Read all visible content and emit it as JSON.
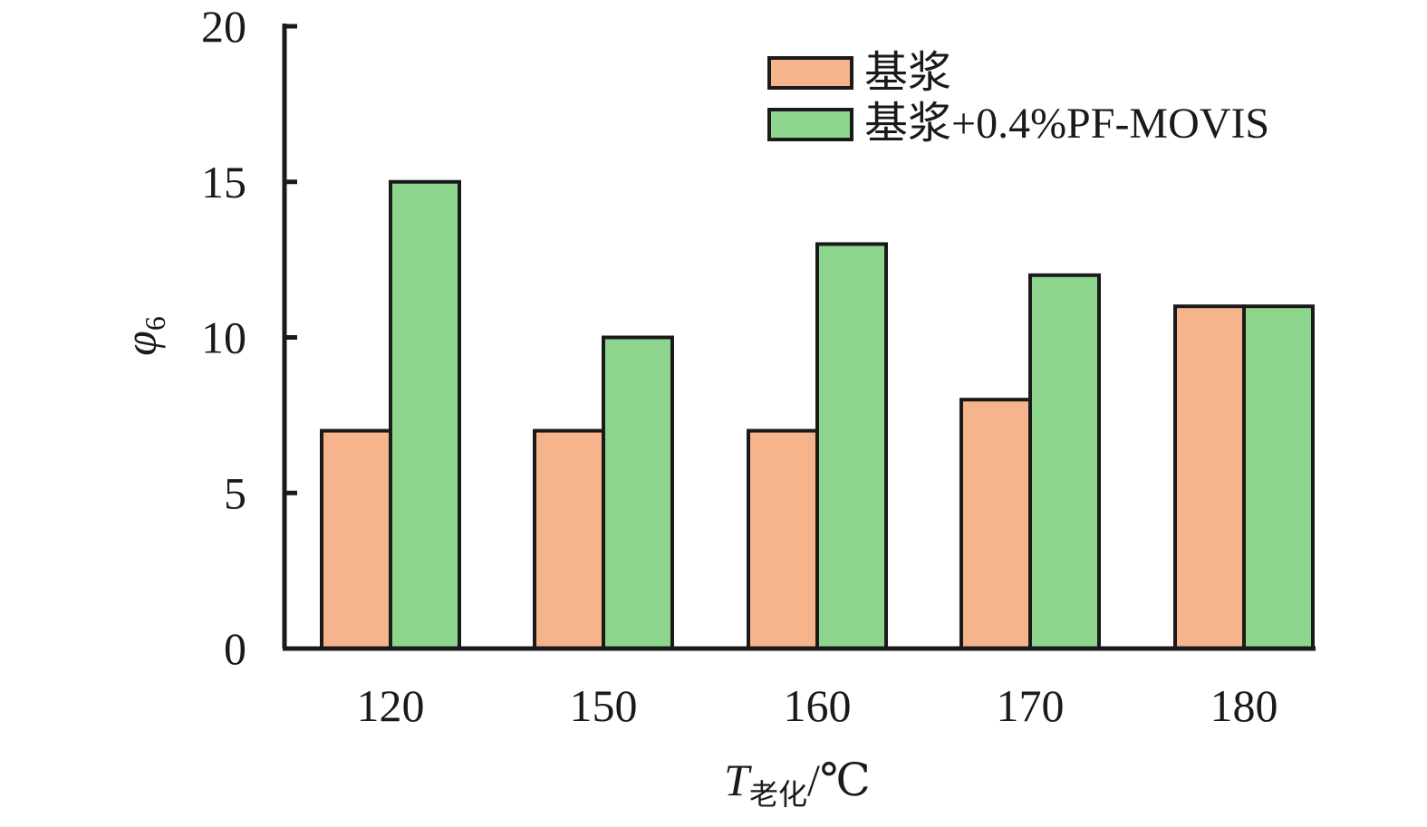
{
  "chart_data": {
    "type": "bar",
    "categories": [
      "120",
      "150",
      "160",
      "170",
      "180"
    ],
    "series": [
      {
        "name": "基浆",
        "color": "#F5B48B",
        "values": [
          7,
          7,
          7,
          8,
          11
        ]
      },
      {
        "name": "基浆+0.4%PF-MOVIS",
        "color": "#8ED68E",
        "values": [
          15,
          10,
          13,
          12,
          11
        ]
      }
    ],
    "ylim": [
      0,
      20
    ],
    "yticks": [
      "0",
      "5",
      "10",
      "15",
      "20"
    ],
    "ylabel": {
      "main": "φ",
      "sub": "6"
    },
    "xlabel": {
      "main": "T",
      "sub": "老化",
      "unit": "/℃"
    },
    "legend_position": "top-right",
    "grid": false
  }
}
